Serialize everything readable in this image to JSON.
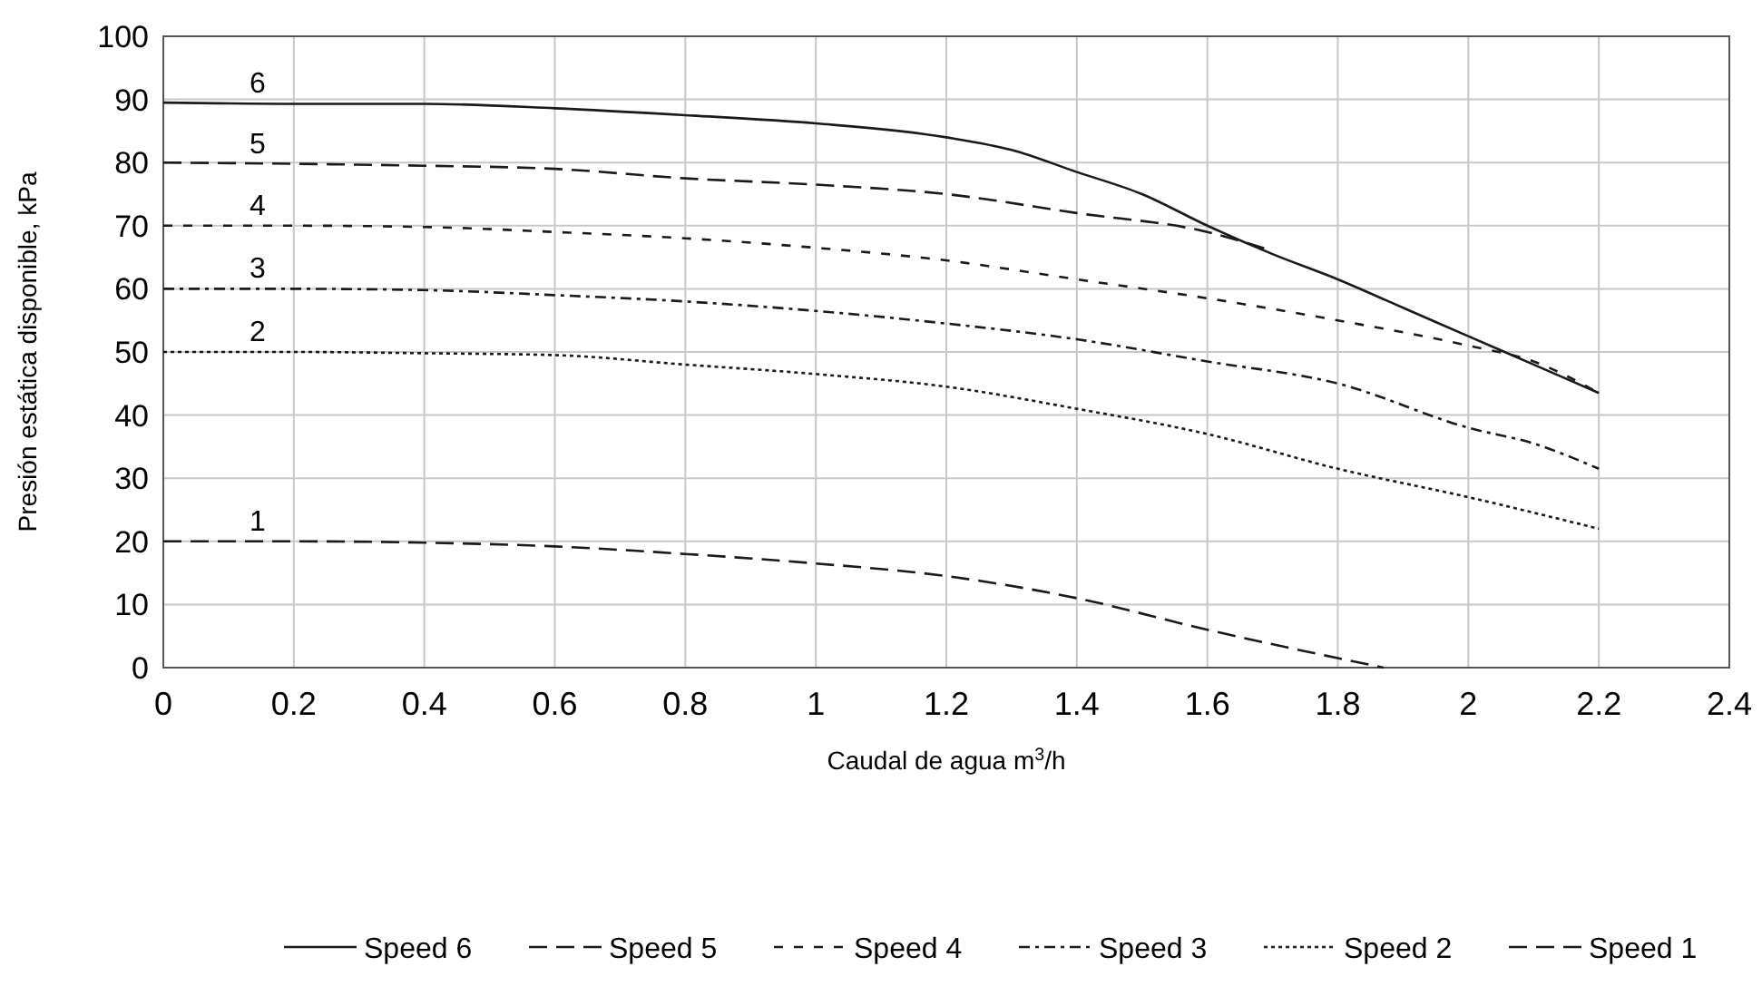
{
  "chart_data": {
    "type": "line",
    "xlabel": "Caudal de agua m$^{3}$/h",
    "ylabel": "Presión estática disponible, kPa",
    "xlim": [
      0,
      2.4
    ],
    "xticks": [
      0,
      0.2,
      0.4,
      0.6,
      0.8,
      1,
      1.2,
      1.4,
      1.6,
      1.8,
      2,
      2.2,
      2.4
    ],
    "ylim": [
      0,
      100
    ],
    "yticks": [
      0,
      10,
      20,
      30,
      40,
      50,
      60,
      70,
      80,
      90,
      100
    ],
    "grid": true,
    "legend": "bottom",
    "marker": "none",
    "series": [
      {
        "name": "Speed 6",
        "color": "#1a1a1a",
        "line_style": "solid",
        "x": [
          0,
          0.2,
          0.4,
          0.6,
          0.8,
          1,
          1.2,
          1.3,
          1.4,
          1.5,
          1.6,
          1.7,
          1.8,
          1.9,
          2,
          2.1,
          2.2
        ],
        "values": [
          89.5,
          89.3,
          89.3,
          88.6,
          87.5,
          86.2,
          84,
          82,
          78.5,
          75,
          70,
          65.5,
          61.5,
          57,
          52.5,
          48,
          43.5
        ]
      },
      {
        "name": "Speed 5",
        "color": "#1a1a1a",
        "line_style": "dashed",
        "x": [
          0,
          0.2,
          0.4,
          0.6,
          0.8,
          1,
          1.2,
          1.4,
          1.6,
          1.7
        ],
        "values": [
          80,
          79.8,
          79.5,
          79,
          77.5,
          76.5,
          75,
          72,
          69,
          66
        ]
      },
      {
        "name": "Speed 4",
        "color": "#1a1a1a",
        "line_style": "dashed",
        "x": [
          0,
          0.2,
          0.4,
          0.6,
          0.8,
          1,
          1.2,
          1.4,
          1.6,
          1.8,
          2,
          2.1,
          2.2
        ],
        "values": [
          70,
          70,
          69.8,
          69,
          68,
          66.5,
          64.5,
          61.5,
          58.5,
          55,
          51,
          48.5,
          43.5
        ]
      },
      {
        "name": "Speed 3",
        "color": "#1a1a1a",
        "line_style": "dotted",
        "x": [
          0,
          0.2,
          0.4,
          0.6,
          0.8,
          1,
          1.2,
          1.4,
          1.6,
          1.8,
          2,
          2.1,
          2.2
        ],
        "values": [
          60,
          60,
          59.8,
          59,
          58,
          56.5,
          54.5,
          52,
          48.5,
          45,
          38,
          35.5,
          31.5
        ]
      },
      {
        "name": "Speed 2",
        "color": "#1a1a1a",
        "line_style": "dotted",
        "x": [
          0,
          0.2,
          0.4,
          0.6,
          0.8,
          1,
          1.2,
          1.4,
          1.6,
          1.8,
          2,
          2.2
        ],
        "values": [
          50,
          50,
          49.8,
          49.5,
          48,
          46.5,
          44.5,
          41,
          37,
          31.5,
          27,
          22
        ]
      },
      {
        "name": "Speed 1",
        "color": "#1a1a1a",
        "line_style": "dashed",
        "x": [
          0,
          0.2,
          0.4,
          0.6,
          0.8,
          1,
          1.2,
          1.4,
          1.6,
          1.8,
          1.87
        ],
        "values": [
          20,
          20,
          19.8,
          19.2,
          18,
          16.5,
          14.5,
          11,
          6,
          1.5,
          0
        ]
      }
    ],
    "annotations": [
      "6",
      "5",
      "4",
      "3",
      "2",
      "1"
    ]
  }
}
